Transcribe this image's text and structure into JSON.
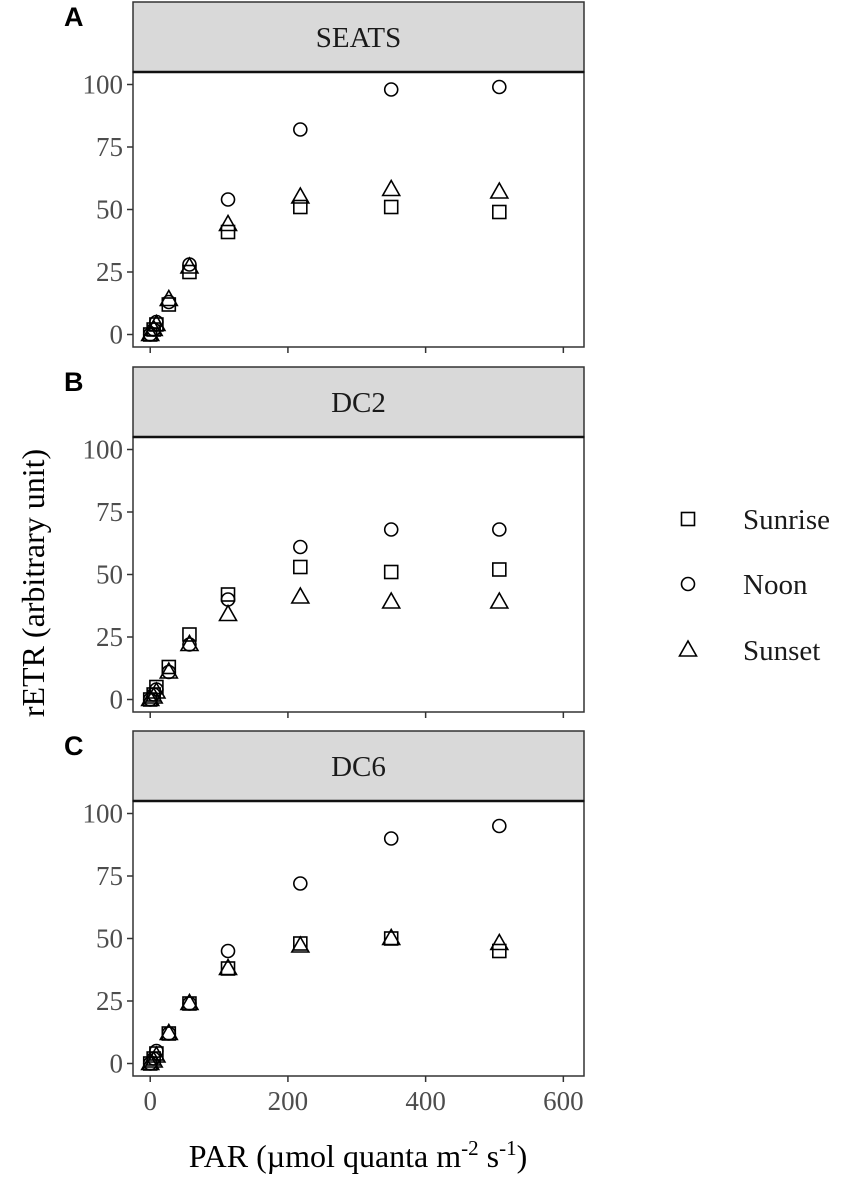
{
  "chart_data": {
    "type": "scatter",
    "xlabel": "PAR (µmol quanta m-2 s-1)",
    "xlabel_parts": {
      "text": "PAR (µmol quanta m",
      "exp1": "-2",
      "mid": " s",
      "exp2": "-1",
      "end": ")"
    },
    "ylabel": "rETR (arbitrary unit)",
    "xlim": [
      -25,
      630
    ],
    "ylim": [
      -5,
      105
    ],
    "xticks": [
      0,
      200,
      400,
      600
    ],
    "yticks": [
      0,
      25,
      50,
      75,
      100
    ],
    "x": [
      0,
      5,
      9,
      27,
      57,
      113,
      218,
      350,
      507
    ],
    "legend": {
      "position": "right",
      "entries": [
        {
          "name": "Sunrise",
          "shape": "square"
        },
        {
          "name": "Noon",
          "shape": "circle"
        },
        {
          "name": "Sunset",
          "shape": "triangle"
        }
      ]
    },
    "panels": [
      {
        "tag": "A",
        "title": "SEATS",
        "series": [
          {
            "name": "Sunrise",
            "values": [
              0,
              2,
              4,
              12,
              25,
              41,
              51,
              51,
              49
            ]
          },
          {
            "name": "Noon",
            "values": [
              0,
              2,
              5,
              13,
              28,
              54,
              82,
              98,
              99
            ]
          },
          {
            "name": "Sunset",
            "values": [
              0,
              2,
              4,
              14,
              27,
              44,
              55,
              58,
              57
            ]
          }
        ]
      },
      {
        "tag": "B",
        "title": "DC2",
        "series": [
          {
            "name": "Sunrise",
            "values": [
              0,
              2,
              5,
              13,
              26,
              42,
              53,
              51,
              52
            ]
          },
          {
            "name": "Noon",
            "values": [
              0,
              2,
              4,
              11,
              22,
              40,
              61,
              68,
              68
            ]
          },
          {
            "name": "Sunset",
            "values": [
              0,
              1,
              3,
              11,
              22,
              34,
              41,
              39,
              39
            ]
          }
        ]
      },
      {
        "tag": "C",
        "title": "DC6",
        "series": [
          {
            "name": "Sunrise",
            "values": [
              0,
              2,
              4,
              12,
              24,
              38,
              48,
              50,
              45
            ]
          },
          {
            "name": "Noon",
            "values": [
              0,
              2,
              5,
              12,
              24,
              45,
              72,
              90,
              95
            ]
          },
          {
            "name": "Sunset",
            "values": [
              0,
              1,
              3,
              12,
              24,
              38,
              47,
              50,
              48
            ]
          }
        ]
      }
    ]
  }
}
